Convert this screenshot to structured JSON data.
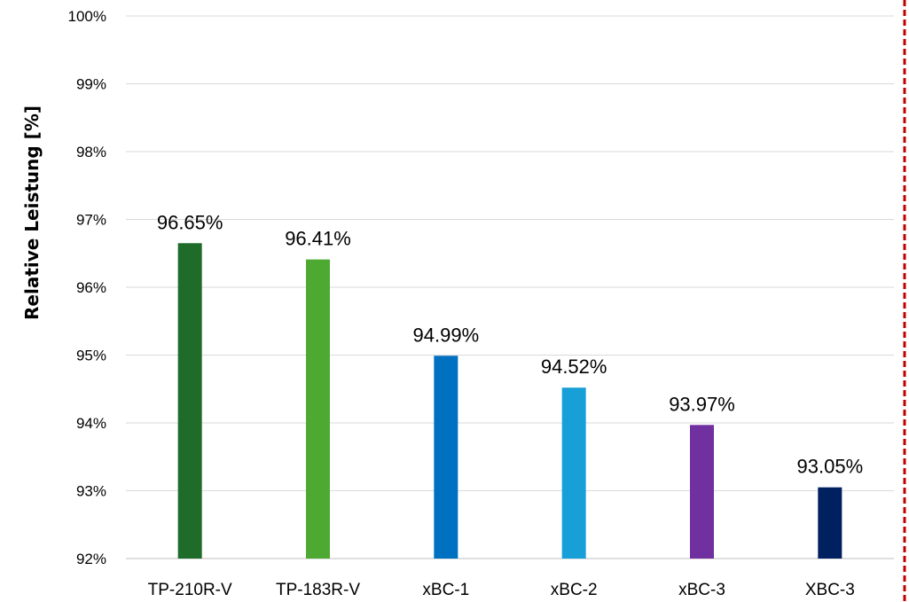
{
  "chart_data": {
    "type": "bar",
    "title": "",
    "xlabel": "",
    "ylabel": "Relative Leistung [%]",
    "ylim": [
      92,
      100
    ],
    "yticks": [
      92,
      93,
      94,
      95,
      96,
      97,
      98,
      99,
      100
    ],
    "ytick_labels": [
      "92%",
      "93%",
      "94%",
      "95%",
      "96%",
      "97%",
      "98%",
      "99%",
      "100%"
    ],
    "grid": true,
    "categories": [
      "TP-210R-V",
      "TP-183R-V",
      "xBC-1",
      "xBC-2",
      "xBC-3",
      "XBC-3"
    ],
    "values": [
      96.65,
      96.41,
      94.99,
      94.52,
      93.97,
      93.05
    ],
    "data_labels": [
      "96.65%",
      "96.41%",
      "94.99%",
      "94.52%",
      "93.97%",
      "93.05%"
    ],
    "colors": [
      "#1e6b2a",
      "#4ea932",
      "#0070c0",
      "#17a0d8",
      "#7030a0",
      "#002060"
    ],
    "reference_line_color": "#c00000"
  }
}
